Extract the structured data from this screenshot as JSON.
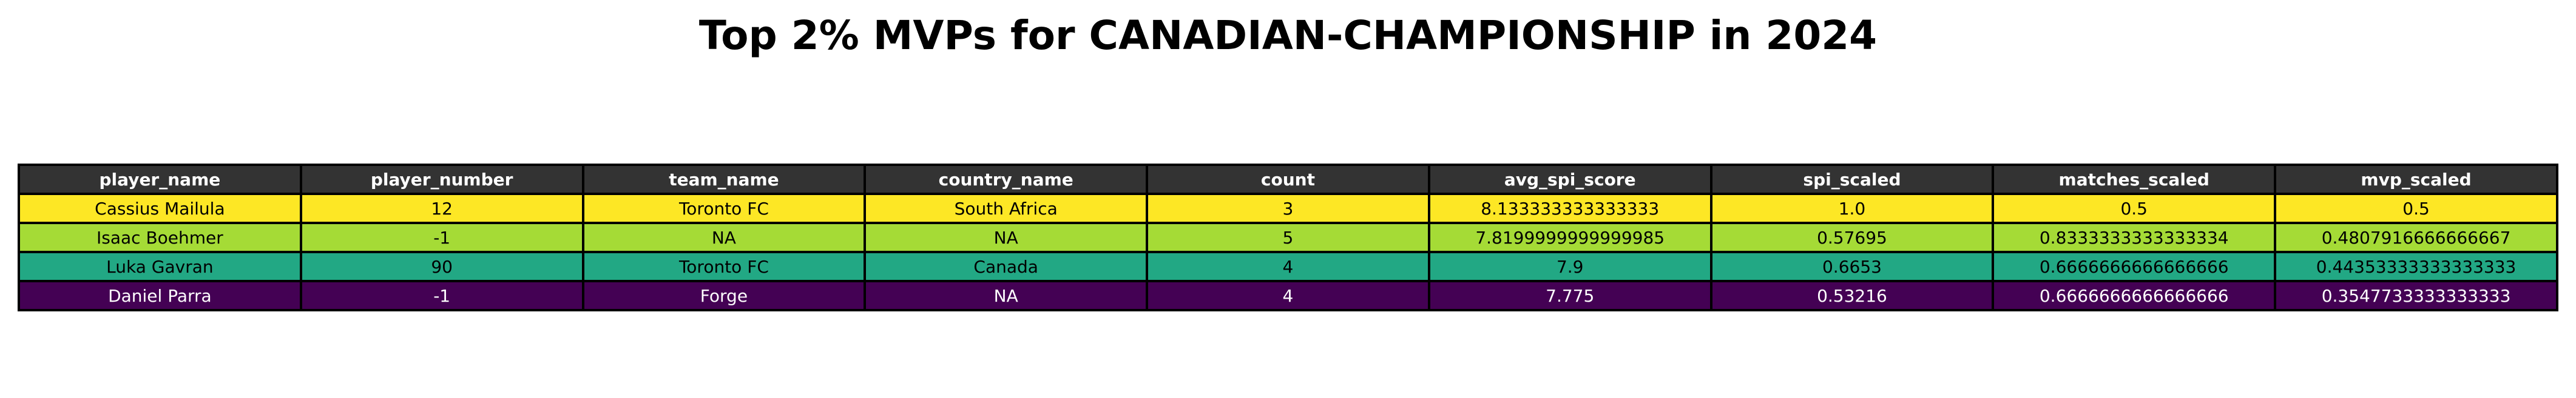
{
  "chart_data": {
    "type": "table",
    "title": "Top 2% MVPs for CANADIAN-CHAMPIONSHIP in 2024",
    "columns": [
      "player_name",
      "player_number",
      "team_name",
      "country_name",
      "count",
      "avg_spi_score",
      "spi_scaled",
      "matches_scaled",
      "mvp_scaled"
    ],
    "rows": [
      {
        "cells": [
          "Cassius Mailula",
          "12",
          "Toronto FC",
          "South Africa",
          "3",
          "8.133333333333333",
          "1.0",
          "0.5",
          "0.5"
        ],
        "row_color": "#fde725",
        "text_color": "#000000"
      },
      {
        "cells": [
          "Isaac Boehmer",
          "-1",
          "NA",
          "NA",
          "5",
          "7.8199999999999985",
          "0.57695",
          "0.8333333333333334",
          "0.4807916666666667"
        ],
        "row_color": "#a5db36",
        "text_color": "#000000"
      },
      {
        "cells": [
          "Luka Gavran",
          "90",
          "Toronto FC",
          "Canada",
          "4",
          "7.9",
          "0.6653",
          "0.6666666666666666",
          "0.44353333333333333"
        ],
        "row_color": "#22a884",
        "text_color": "#000000"
      },
      {
        "cells": [
          "Daniel Parra",
          "-1",
          "Forge",
          "NA",
          "4",
          "7.775",
          "0.53216",
          "0.6666666666666666",
          "0.3547733333333333"
        ],
        "row_color": "#440154",
        "text_color": "#ffffff"
      }
    ]
  }
}
